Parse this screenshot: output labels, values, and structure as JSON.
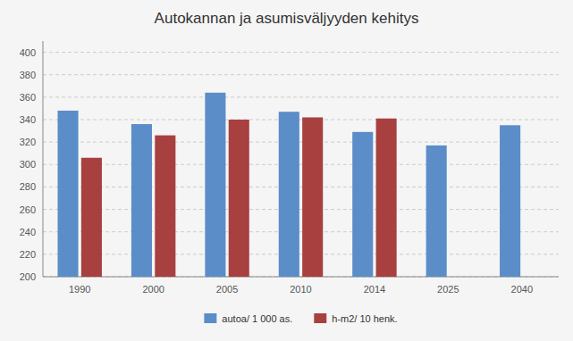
{
  "chart_data": {
    "type": "bar",
    "title": "Autokannan ja asumisväljyyden kehitys",
    "categories": [
      "1990",
      "2000",
      "2005",
      "2010",
      "2014",
      "2025",
      "2040"
    ],
    "series": [
      {
        "name": "autoa/ 1 000 as.",
        "color": "#5b8dc8",
        "values": [
          348,
          336,
          364,
          347,
          329,
          317,
          335
        ]
      },
      {
        "name": "h-m2/ 10 henk.",
        "color": "#a84040",
        "values": [
          306,
          326,
          340,
          342,
          341,
          null,
          null
        ]
      }
    ],
    "ylim": [
      200,
      410
    ],
    "yticks": [
      200,
      220,
      240,
      260,
      280,
      300,
      320,
      340,
      360,
      380,
      400
    ],
    "grid": true,
    "legend": "bottom"
  }
}
